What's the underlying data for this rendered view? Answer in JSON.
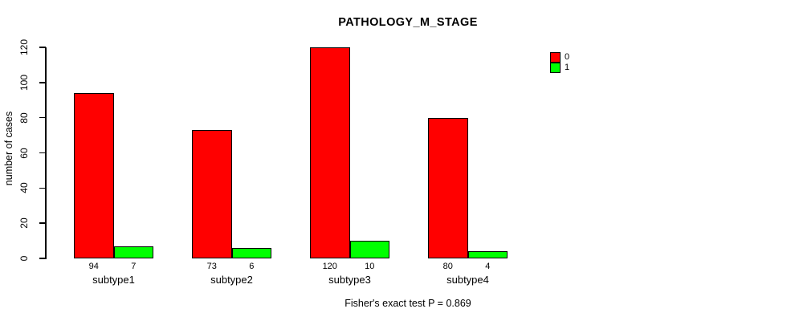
{
  "chart_data": {
    "type": "bar",
    "title": "PATHOLOGY_M_STAGE",
    "categories": [
      "subtype1",
      "subtype2",
      "subtype3",
      "subtype4"
    ],
    "series": [
      {
        "name": "0",
        "color": "#ff0000",
        "values": [
          94,
          73,
          120,
          80
        ]
      },
      {
        "name": "1",
        "color": "#00ff00",
        "values": [
          7,
          6,
          10,
          4
        ]
      }
    ],
    "xlabel": "",
    "ylabel": "number of cases",
    "ylim": [
      0,
      120
    ],
    "yticks": [
      0,
      20,
      40,
      60,
      80,
      100,
      120
    ],
    "grid": false,
    "bar_borders": true,
    "bar_value_labels": true,
    "legend_position": "top-right",
    "annotation": "Fisher's exact test P = 0.869"
  },
  "colors": {
    "background": "#ffffff",
    "axis": "#000000",
    "text": "#000000"
  }
}
